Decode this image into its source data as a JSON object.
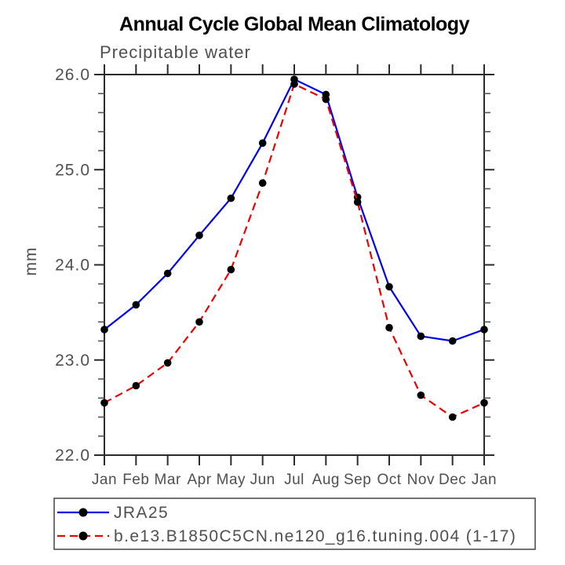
{
  "chart_data": {
    "type": "line",
    "title": "Annual Cycle Global Mean Climatology",
    "subtitle": "Precipitable water",
    "xlabel": "",
    "ylabel": "mm",
    "ylim": [
      22.0,
      26.0
    ],
    "yticks": [
      22.0,
      23.0,
      24.0,
      25.0,
      26.0
    ],
    "ytick_labels": [
      "22.0",
      "23.0",
      "24.0",
      "25.0",
      "26.0"
    ],
    "minor_tick_interval": 0.2,
    "grid": false,
    "legend_position": "bottom-left-box",
    "categories": [
      "Jan",
      "Feb",
      "Mar",
      "Apr",
      "May",
      "Jun",
      "Jul",
      "Aug",
      "Sep",
      "Oct",
      "Nov",
      "Dec",
      "Jan"
    ],
    "series": [
      {
        "name": "JRA25",
        "line_style": "solid",
        "color": "#0000ee",
        "marker": "circle",
        "marker_color": "#000000",
        "values": [
          23.32,
          23.58,
          23.91,
          24.31,
          24.7,
          25.28,
          25.95,
          25.79,
          24.71,
          23.77,
          23.25,
          23.2,
          23.32
        ]
      },
      {
        "name": "b.e13.B1850C5CN.ne120_g16.tuning.004 (1-17)",
        "line_style": "dashed",
        "color": "#ee0000",
        "marker": "circle",
        "marker_color": "#000000",
        "values": [
          22.55,
          22.73,
          22.97,
          23.4,
          23.95,
          24.86,
          25.9,
          25.74,
          24.66,
          23.34,
          22.63,
          22.4,
          22.55
        ]
      }
    ]
  },
  "colors": {
    "axis": "#2b2b2b",
    "minor_tick": "#555555",
    "text": "#4f4f4f",
    "title": "#000000",
    "legend_border": "#444444",
    "background": "#ffffff"
  }
}
